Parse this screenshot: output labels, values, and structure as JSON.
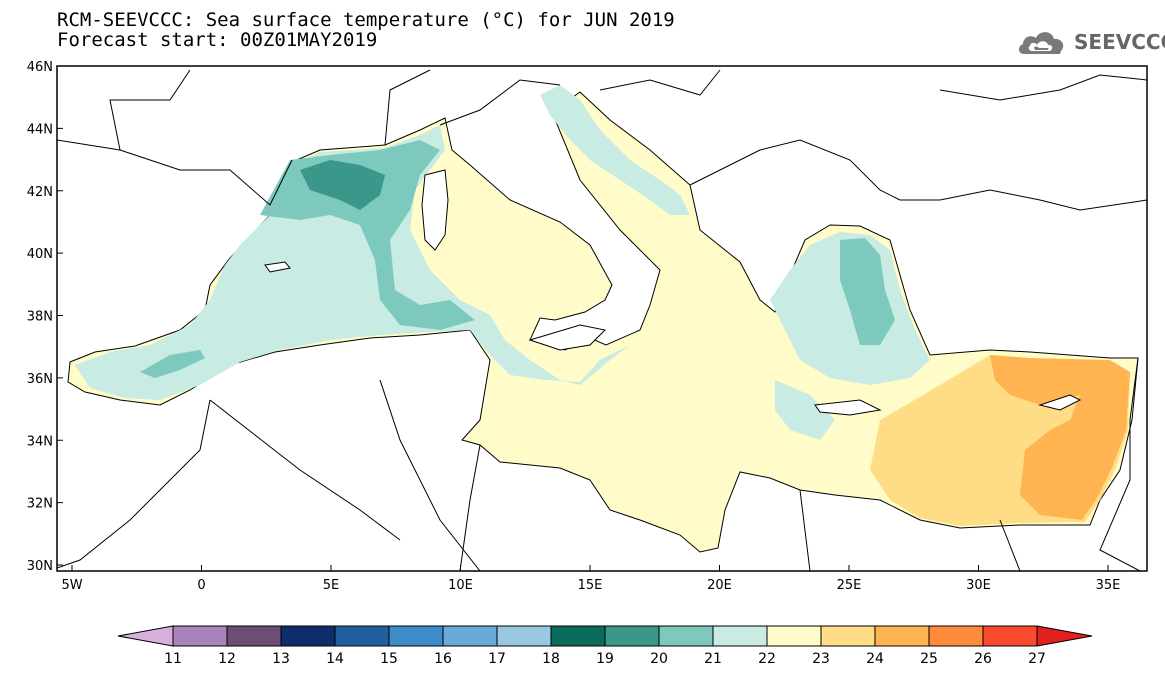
{
  "title_line1": "RCM-SEEVCCC: Sea surface temperature (°C) for JUN 2019",
  "title_line2": "Forecast start: 00Z01MAY2019",
  "logo": {
    "text": "SEEVCCC",
    "icon": "cloud-icon"
  },
  "map": {
    "lat_labels": [
      "46N",
      "44N",
      "42N",
      "40N",
      "38N",
      "36N",
      "34N",
      "32N",
      "30N"
    ],
    "lon_labels": [
      "5W",
      "0",
      "5E",
      "10E",
      "15E",
      "20E",
      "25E",
      "30E",
      "35E"
    ],
    "land_color": "#ffffff",
    "border_color": "#000000"
  },
  "colorbar": {
    "ticks": [
      "11",
      "12",
      "13",
      "14",
      "15",
      "16",
      "17",
      "18",
      "19",
      "20",
      "21",
      "22",
      "23",
      "24",
      "25",
      "26",
      "27"
    ],
    "colors": [
      "#d9b0da",
      "#a884bd",
      "#6b4f76",
      "#0d2d6b",
      "#1f5f9e",
      "#3f8ccb",
      "#6aaad8",
      "#9ac8e2",
      "#0a6b5a",
      "#3a978a",
      "#7dc9bd",
      "#c8ebe3",
      "#fffcc9",
      "#ffdd86",
      "#ffb451",
      "#ff8a3c",
      "#f94b2e",
      "#e1201f"
    ]
  }
}
